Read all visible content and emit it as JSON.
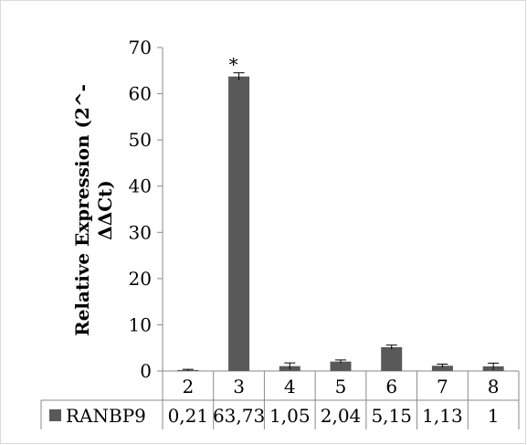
{
  "chart_data": {
    "type": "bar",
    "categories": [
      "2",
      "3",
      "4",
      "5",
      "6",
      "7",
      "8"
    ],
    "series": [
      {
        "name": "RANBP9",
        "values": [
          0.21,
          63.73,
          1.05,
          2.04,
          5.15,
          1.13,
          1
        ],
        "errors": [
          0.15,
          0.8,
          0.7,
          0.35,
          0.45,
          0.35,
          0.7
        ],
        "table_labels": [
          "0,21",
          "63,73",
          "1,05",
          "2,04",
          "5,15",
          "1,13",
          "1"
        ],
        "color": "#595959"
      }
    ],
    "ylabel_lines": [
      "Relative Expression (2^-",
      "ΔΔCt)"
    ],
    "ylim": [
      0,
      70
    ],
    "yticks": [
      0,
      10,
      20,
      30,
      40,
      50,
      60,
      70
    ],
    "annotations": [
      {
        "category": "3",
        "text": "*"
      }
    ],
    "grid": false,
    "legend": "data-table"
  }
}
